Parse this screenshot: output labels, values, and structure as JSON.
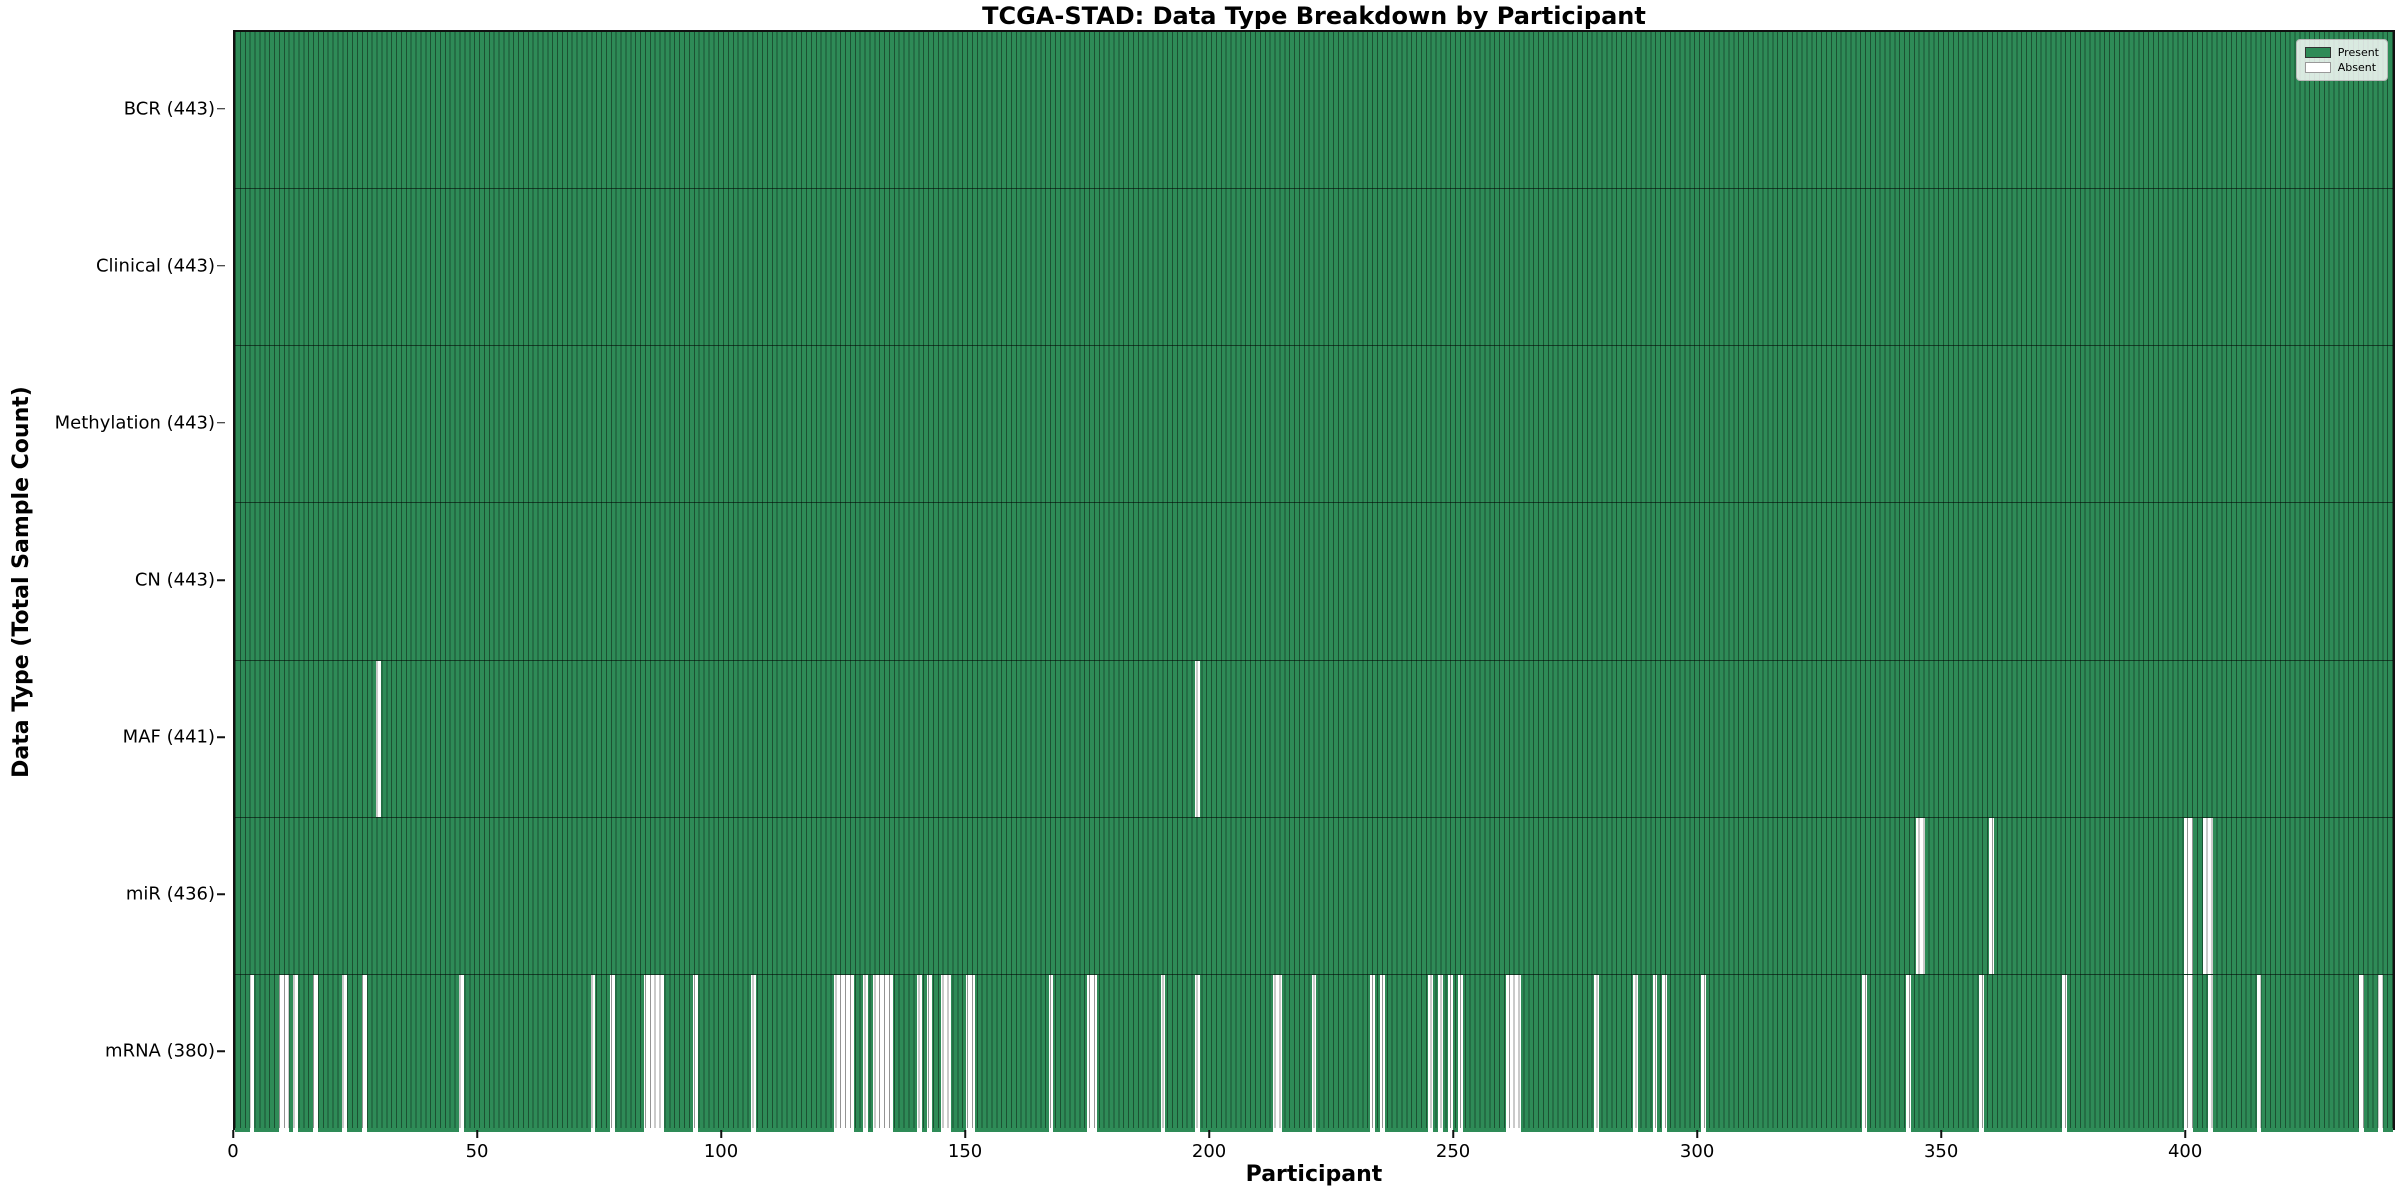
{
  "title": "TCGA-STAD: Data Type Breakdown by Participant",
  "xlabel": "Participant",
  "ylabel": "Data Type (Total Sample Count)",
  "legend": {
    "present_label": "Present",
    "absent_label": "Absent"
  },
  "colors": {
    "present": "#2E8B57",
    "absent": "#FFFFFF",
    "cell_edge": "rgba(0,0,0,0.42)",
    "row_divider": "rgba(0,0,0,0.55)",
    "spine": "#111111"
  },
  "chart_data": {
    "type": "heatmap",
    "title": "TCGA-STAD: Data Type Breakdown by Participant",
    "xlabel": "Participant",
    "ylabel": "Data Type (Total Sample Count)",
    "legend_entries": [
      "Present",
      "Absent"
    ],
    "legend_position": "upper right",
    "n_participants": 443,
    "x_ticks": [
      0,
      50,
      100,
      150,
      200,
      250,
      300,
      350,
      400
    ],
    "value_encoding": {
      "present": "green cell",
      "absent": "white cell"
    },
    "rows": [
      {
        "name": "BCR",
        "label": "BCR (443)",
        "total": 443,
        "absent": []
      },
      {
        "name": "Clinical",
        "label": "Clinical (443)",
        "total": 443,
        "absent": []
      },
      {
        "name": "Methylation",
        "label": "Methylation (443)",
        "total": 443,
        "absent": []
      },
      {
        "name": "CN",
        "label": "CN (443)",
        "total": 443,
        "absent": []
      },
      {
        "name": "MAF",
        "label": "MAF (441)",
        "total": 441,
        "absent": [
          29,
          197
        ]
      },
      {
        "name": "miR",
        "label": "miR (436)",
        "total": 436,
        "absent": [
          345,
          346,
          360,
          400,
          401,
          404,
          405
        ]
      },
      {
        "name": "mRNA",
        "label": "mRNA (380)",
        "total": 380,
        "absent": [
          3,
          9,
          10,
          12,
          16,
          22,
          26,
          46,
          73,
          77,
          84,
          85,
          86,
          87,
          94,
          106,
          123,
          124,
          125,
          126,
          129,
          131,
          132,
          133,
          134,
          140,
          142,
          145,
          146,
          150,
          151,
          167,
          175,
          176,
          190,
          197,
          213,
          214,
          221,
          233,
          235,
          245,
          247,
          249,
          251,
          261,
          262,
          263,
          279,
          287,
          291,
          293,
          301,
          334,
          343,
          358,
          375,
          400,
          401,
          405,
          415,
          436,
          440
        ]
      }
    ]
  }
}
